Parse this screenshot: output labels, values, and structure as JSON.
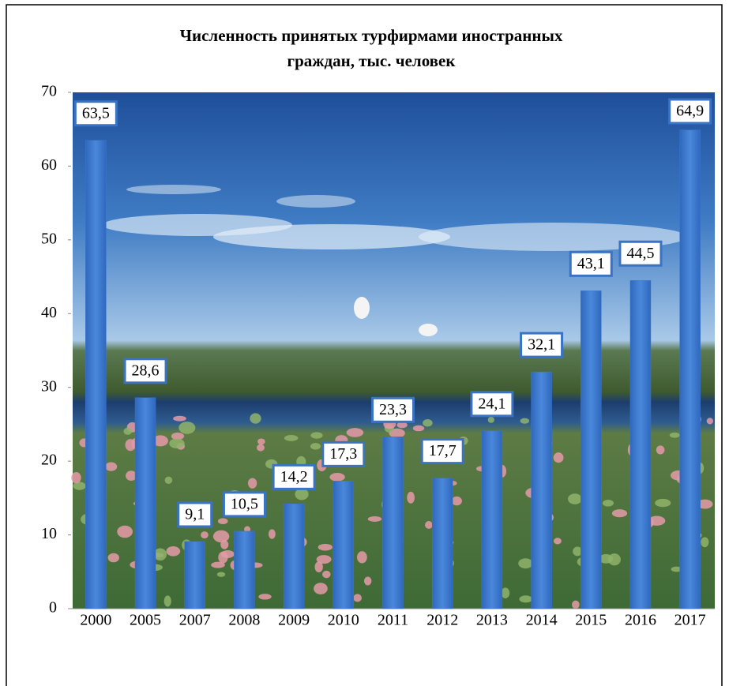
{
  "chart_data": {
    "type": "bar",
    "title": "Численность принятых турфирмами иностранных граждан, тыс. человек",
    "categories": [
      "2000",
      "2005",
      "2007",
      "2008",
      "2009",
      "2010",
      "2011",
      "2012",
      "2013",
      "2014",
      "2015",
      "2016",
      "2017"
    ],
    "values": [
      63.5,
      28.6,
      9.1,
      10.5,
      14.2,
      17.3,
      23.3,
      17.7,
      24.1,
      32.1,
      43.1,
      44.5,
      64.9
    ],
    "value_labels": [
      "63,5",
      "28,6",
      "9,1",
      "10,5",
      "14,2",
      "17,3",
      "23,3",
      "17,7",
      "24,1",
      "32,1",
      "43,1",
      "44,5",
      "64,9"
    ],
    "color": "#3b78cf",
    "ylim": [
      0,
      70
    ],
    "yticks": [
      0,
      10,
      20,
      30,
      40,
      50,
      60,
      70
    ],
    "grid": false
  }
}
